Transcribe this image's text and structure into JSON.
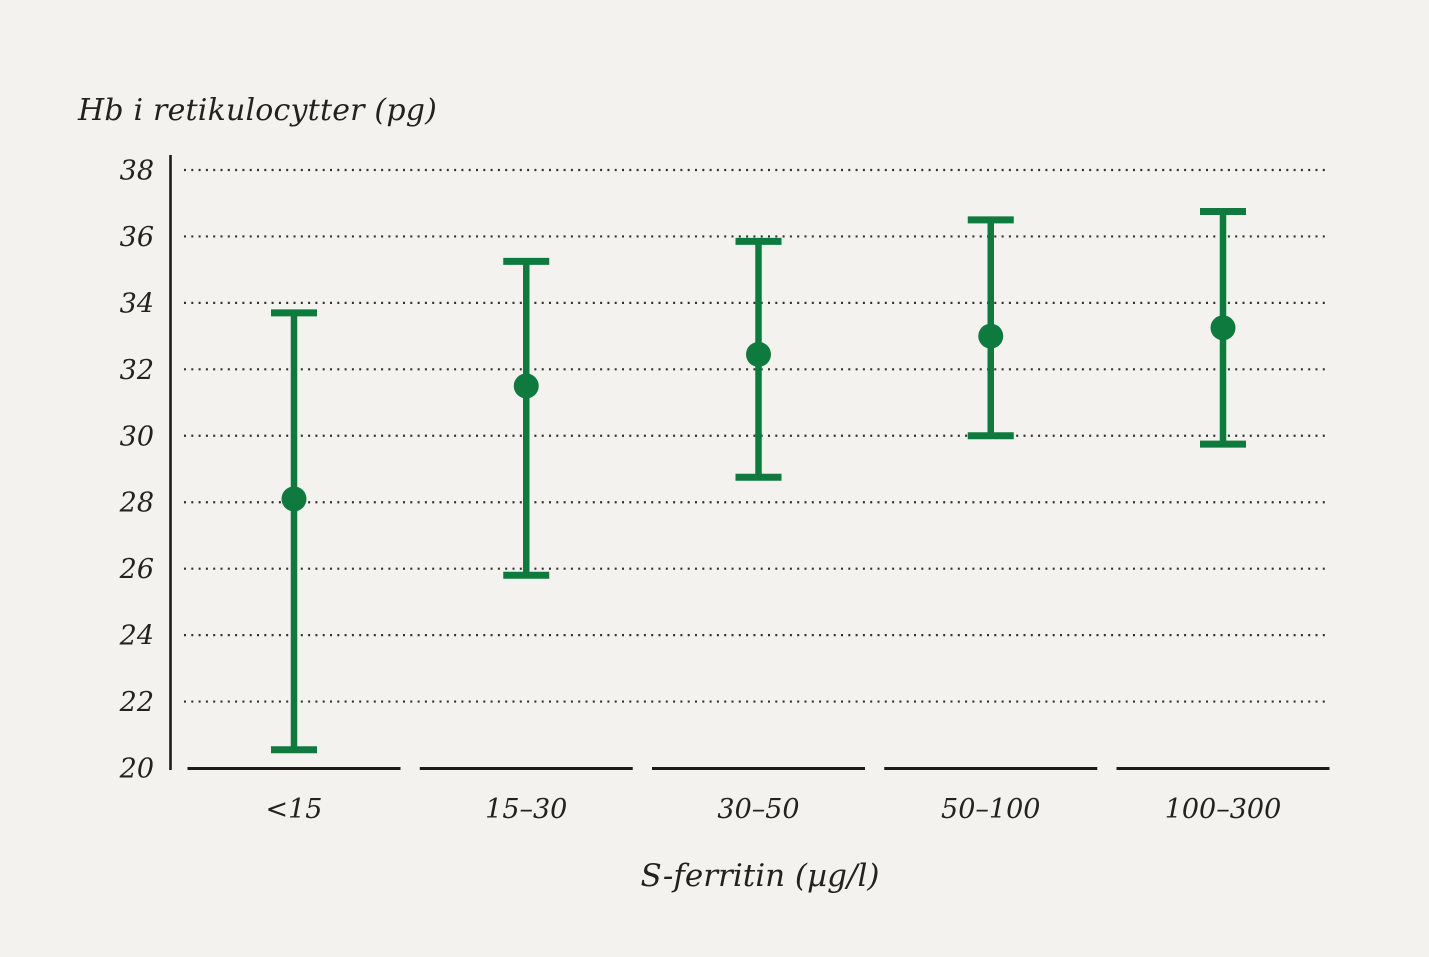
{
  "colors": {
    "background": "#f3f2ef",
    "point_green": "#0e7a3e",
    "axis_black": "#1d1c19",
    "grid_dot": "#33312e",
    "text": "#24221f"
  },
  "chart_data": {
    "type": "scatter",
    "subtype": "point-with-error-bars",
    "title": "",
    "ylabel": "Hb i retikulocytter (pg)",
    "xlabel": "S-ferritin (µg/l)",
    "categories": [
      "<15",
      "15–30",
      "30–50",
      "50–100",
      "100–300"
    ],
    "series": [
      {
        "name": "Hb i retikulocytter",
        "means": [
          28.1,
          31.5,
          32.45,
          33.0,
          33.25
        ],
        "upper": [
          33.7,
          35.25,
          35.85,
          36.5,
          36.75
        ],
        "lower": [
          20.55,
          25.8,
          28.75,
          30.0,
          29.75
        ]
      }
    ],
    "ylim": [
      20,
      38
    ],
    "yticks": [
      20,
      22,
      24,
      26,
      28,
      30,
      32,
      34,
      36,
      38
    ],
    "grid": "horizontal-dotted",
    "legend": "none",
    "point_color": "#0e7a3e",
    "x_axis_style": "segmented-baseline-per-category"
  }
}
